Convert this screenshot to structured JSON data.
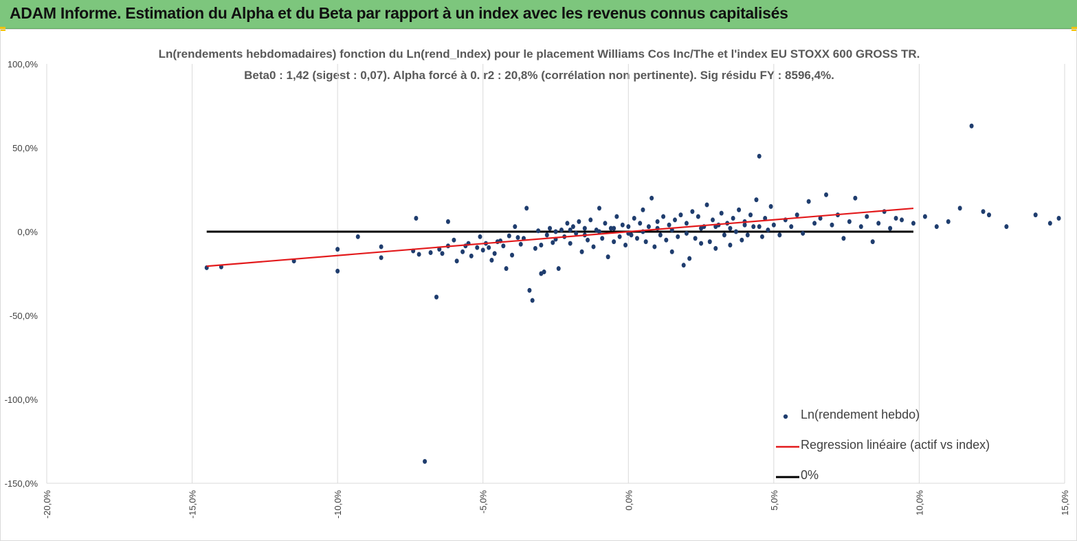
{
  "banner": {
    "title": "ADAM Informe. Estimation du Alpha et du Beta par rapport à un index avec les revenus connus capitalisés",
    "background": "#7dc67d",
    "accent": "#f2c200"
  },
  "chart_data": {
    "type": "scatter",
    "title": "Ln(rendements hebdomadaires) fonction du Ln(rend_Index) pour le placement Williams Cos Inc/The et l'index EU STOXX 600 GROSS TR.",
    "subtitle": "Beta0 : 1,42 (sigest : 0,07). Alpha forcé à 0. r2 : 20,8% (corrélation non pertinente). Sig résidu FY : 8596,4%.",
    "xlabel": "",
    "ylabel": "",
    "xlim": [
      -0.2,
      0.15
    ],
    "ylim": [
      -1.5,
      1.0
    ],
    "x_ticks": [
      -0.2,
      -0.15,
      -0.1,
      -0.05,
      0.0,
      0.05,
      0.1,
      0.15
    ],
    "x_tick_labels": [
      "-20,0%",
      "-15,0%",
      "-10,0%",
      "-5,0%",
      "0,0%",
      "5,0%",
      "10,0%",
      "15,0%"
    ],
    "y_ticks": [
      1.0,
      0.5,
      0.0,
      -0.5,
      -1.0,
      -1.5
    ],
    "y_tick_labels": [
      "100,0%",
      "50,0%",
      "0,0%",
      "-50,0%",
      "-100,0%",
      "-150,0%"
    ],
    "grid": "vertical",
    "legend_position": "bottom-right",
    "series": [
      {
        "name": "Ln(rendement hebdo)",
        "kind": "points",
        "color": "#1f3d6e",
        "points": [
          [
            -0.145,
            -0.215
          ],
          [
            -0.14,
            -0.21
          ],
          [
            -0.115,
            -0.175
          ],
          [
            -0.1,
            -0.105
          ],
          [
            -0.1,
            -0.235
          ],
          [
            -0.093,
            -0.03
          ],
          [
            -0.085,
            -0.09
          ],
          [
            -0.085,
            -0.155
          ],
          [
            -0.074,
            -0.115
          ],
          [
            -0.073,
            0.08
          ],
          [
            -0.072,
            -0.135
          ],
          [
            -0.07,
            -1.37
          ],
          [
            -0.068,
            -0.125
          ],
          [
            -0.066,
            -0.39
          ],
          [
            -0.065,
            -0.105
          ],
          [
            -0.064,
            -0.13
          ],
          [
            -0.062,
            0.06
          ],
          [
            -0.062,
            -0.085
          ],
          [
            -0.06,
            -0.05
          ],
          [
            -0.059,
            -0.175
          ],
          [
            -0.057,
            -0.12
          ],
          [
            -0.056,
            -0.085
          ],
          [
            -0.055,
            -0.07
          ],
          [
            -0.054,
            -0.145
          ],
          [
            -0.052,
            -0.095
          ],
          [
            -0.051,
            -0.03
          ],
          [
            -0.05,
            -0.11
          ],
          [
            -0.049,
            -0.07
          ],
          [
            -0.048,
            -0.095
          ],
          [
            -0.047,
            -0.17
          ],
          [
            -0.046,
            -0.13
          ],
          [
            -0.045,
            -0.06
          ],
          [
            -0.044,
            -0.055
          ],
          [
            -0.043,
            -0.085
          ],
          [
            -0.042,
            -0.22
          ],
          [
            -0.041,
            -0.025
          ],
          [
            -0.04,
            -0.14
          ],
          [
            -0.039,
            0.03
          ],
          [
            -0.038,
            -0.035
          ],
          [
            -0.037,
            -0.075
          ],
          [
            -0.036,
            -0.04
          ],
          [
            -0.035,
            0.14
          ],
          [
            -0.034,
            -0.35
          ],
          [
            -0.033,
            -0.41
          ],
          [
            -0.032,
            -0.1
          ],
          [
            -0.031,
            0.005
          ],
          [
            -0.03,
            -0.08
          ],
          [
            -0.03,
            -0.25
          ],
          [
            -0.029,
            -0.24
          ],
          [
            -0.028,
            -0.02
          ],
          [
            -0.027,
            0.02
          ],
          [
            -0.026,
            -0.065
          ],
          [
            -0.025,
            -0.045
          ],
          [
            -0.024,
            -0.22
          ],
          [
            -0.023,
            0.01
          ],
          [
            -0.022,
            -0.03
          ],
          [
            -0.021,
            0.05
          ],
          [
            -0.02,
            -0.07
          ],
          [
            -0.019,
            0.03
          ],
          [
            -0.018,
            -0.01
          ],
          [
            -0.017,
            0.06
          ],
          [
            -0.016,
            -0.12
          ],
          [
            -0.015,
            0.02
          ],
          [
            -0.014,
            -0.05
          ],
          [
            -0.013,
            0.07
          ],
          [
            -0.012,
            -0.09
          ],
          [
            -0.011,
            0.01
          ],
          [
            -0.01,
            0.14
          ],
          [
            -0.009,
            -0.04
          ],
          [
            -0.008,
            0.05
          ],
          [
            -0.007,
            -0.15
          ],
          [
            -0.006,
            0.02
          ],
          [
            -0.005,
            -0.06
          ],
          [
            -0.004,
            0.09
          ],
          [
            -0.003,
            -0.03
          ],
          [
            -0.002,
            0.04
          ],
          [
            -0.001,
            -0.08
          ],
          [
            0.0,
            0.03
          ],
          [
            0.001,
            -0.02
          ],
          [
            0.002,
            0.08
          ],
          [
            0.003,
            -0.04
          ],
          [
            0.004,
            0.05
          ],
          [
            0.005,
            0.13
          ],
          [
            0.006,
            -0.06
          ],
          [
            0.007,
            0.03
          ],
          [
            0.008,
            0.2
          ],
          [
            0.009,
            -0.09
          ],
          [
            0.01,
            0.06
          ],
          [
            0.011,
            -0.02
          ],
          [
            0.012,
            0.09
          ],
          [
            0.013,
            -0.05
          ],
          [
            0.014,
            0.04
          ],
          [
            0.015,
            -0.12
          ],
          [
            0.016,
            0.07
          ],
          [
            0.017,
            -0.03
          ],
          [
            0.018,
            0.1
          ],
          [
            0.019,
            -0.2
          ],
          [
            0.02,
            0.05
          ],
          [
            0.021,
            -0.16
          ],
          [
            0.022,
            0.12
          ],
          [
            0.023,
            -0.04
          ],
          [
            0.024,
            0.09
          ],
          [
            0.025,
            -0.07
          ],
          [
            0.026,
            0.03
          ],
          [
            0.027,
            0.16
          ],
          [
            0.028,
            -0.06
          ],
          [
            0.029,
            0.07
          ],
          [
            0.03,
            -0.1
          ],
          [
            0.031,
            0.04
          ],
          [
            0.032,
            0.11
          ],
          [
            0.033,
            -0.02
          ],
          [
            0.034,
            0.05
          ],
          [
            0.035,
            -0.08
          ],
          [
            0.036,
            0.08
          ],
          [
            0.037,
            0.0
          ],
          [
            0.038,
            0.13
          ],
          [
            0.039,
            -0.05
          ],
          [
            0.04,
            0.06
          ],
          [
            0.041,
            -0.02
          ],
          [
            0.042,
            0.1
          ],
          [
            0.043,
            0.03
          ],
          [
            0.044,
            0.19
          ],
          [
            0.045,
            0.45
          ],
          [
            0.046,
            -0.03
          ],
          [
            0.047,
            0.08
          ],
          [
            0.048,
            0.01
          ],
          [
            0.049,
            0.15
          ],
          [
            0.05,
            0.04
          ],
          [
            0.052,
            -0.02
          ],
          [
            0.054,
            0.07
          ],
          [
            0.056,
            0.03
          ],
          [
            0.058,
            0.1
          ],
          [
            0.06,
            -0.01
          ],
          [
            0.062,
            0.18
          ],
          [
            0.064,
            0.05
          ],
          [
            0.066,
            0.08
          ],
          [
            0.068,
            0.22
          ],
          [
            0.07,
            0.04
          ],
          [
            0.072,
            0.1
          ],
          [
            0.074,
            -0.04
          ],
          [
            0.076,
            0.06
          ],
          [
            0.078,
            0.2
          ],
          [
            0.08,
            0.03
          ],
          [
            0.082,
            0.09
          ],
          [
            0.084,
            -0.06
          ],
          [
            0.086,
            0.05
          ],
          [
            0.088,
            0.12
          ],
          [
            0.09,
            0.02
          ],
          [
            0.092,
            0.08
          ],
          [
            0.094,
            0.07
          ],
          [
            0.098,
            0.05
          ],
          [
            0.102,
            0.09
          ],
          [
            0.106,
            0.03
          ],
          [
            0.11,
            0.06
          ],
          [
            0.114,
            0.14
          ],
          [
            0.118,
            0.63
          ],
          [
            0.122,
            0.12
          ],
          [
            0.124,
            0.1
          ],
          [
            0.13,
            0.03
          ],
          [
            0.14,
            0.1
          ],
          [
            0.145,
            0.05
          ],
          [
            0.148,
            0.08
          ],
          [
            -0.025,
            0.0
          ],
          [
            -0.02,
            0.01
          ],
          [
            -0.015,
            -0.02
          ],
          [
            -0.01,
            0.0
          ],
          [
            -0.005,
            0.02
          ],
          [
            0.0,
            -0.01
          ],
          [
            0.005,
            0.0
          ],
          [
            0.01,
            0.02
          ],
          [
            0.015,
            0.01
          ],
          [
            0.02,
            -0.01
          ],
          [
            0.025,
            0.02
          ],
          [
            0.03,
            0.03
          ],
          [
            0.035,
            0.02
          ],
          [
            0.04,
            0.04
          ],
          [
            0.045,
            0.03
          ]
        ]
      },
      {
        "name": "Regression linéaire (actif vs index)",
        "kind": "line",
        "color": "#e31a1c",
        "x": [
          -0.145,
          0.098
        ],
        "y": [
          -0.206,
          0.139
        ]
      },
      {
        "name": "0%",
        "kind": "line",
        "color": "#000000",
        "x": [
          -0.145,
          0.098
        ],
        "y": [
          0.0,
          0.0
        ]
      }
    ]
  }
}
